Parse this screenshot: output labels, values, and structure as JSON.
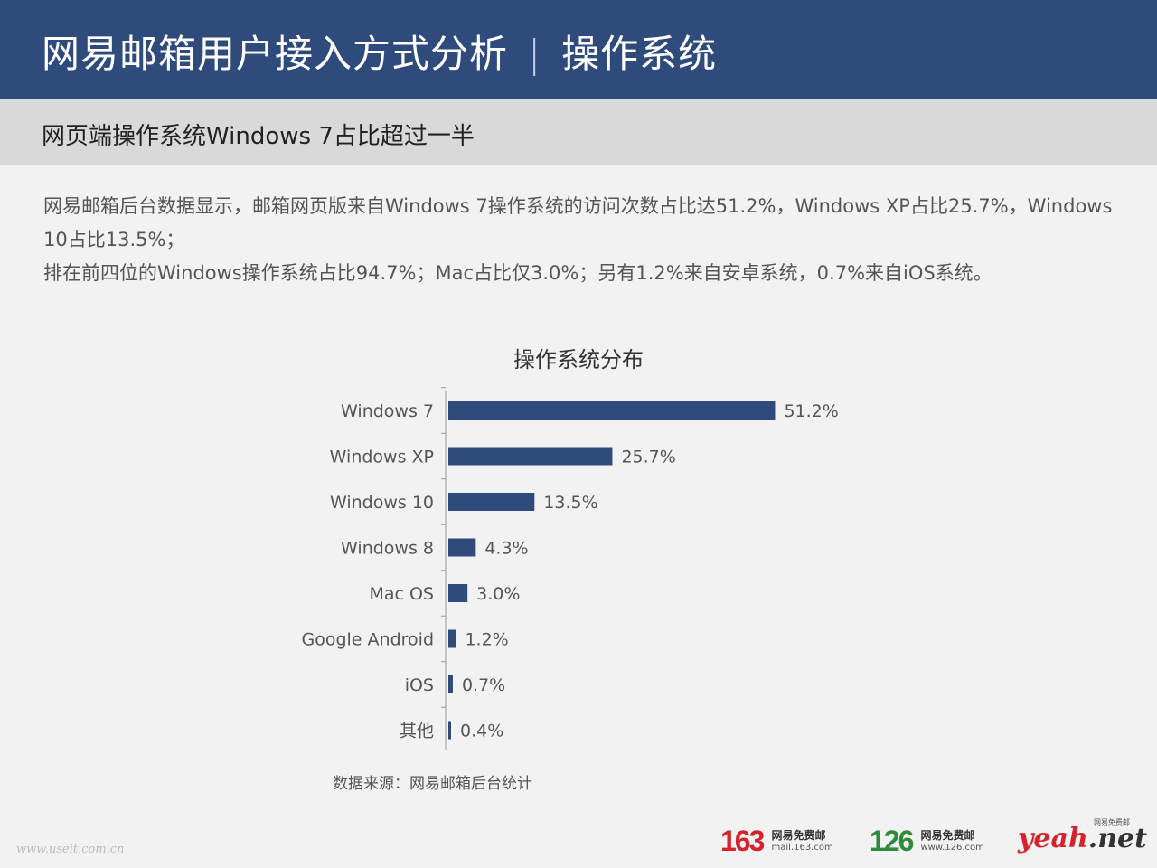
{
  "header": {
    "title": "网易邮箱用户接入方式分析",
    "separator": "|",
    "subtitle": "操作系统"
  },
  "subheader": {
    "title": "网页端操作系统Windows 7占比超过一半"
  },
  "description": {
    "line1": "网易邮箱后台数据显示，邮箱网页版来自Windows 7操作系统的访问次数占比达51.2%，Windows XP占比25.7%，Windows 10占比13.5%；",
    "line2": "排在前四位的Windows操作系统占比94.7%；Mac占比仅3.0%；另有1.2%来自安卓系统，0.7%来自iOS系统。"
  },
  "chart_title": "操作系统分布",
  "chart_data": {
    "type": "bar",
    "orientation": "horizontal",
    "title": "操作系统分布",
    "categories": [
      "Windows 7",
      "Windows XP",
      "Windows 10",
      "Windows 8",
      "Mac OS",
      "Google Android",
      "iOS",
      "其他"
    ],
    "values": [
      51.2,
      25.7,
      13.5,
      4.3,
      3.0,
      1.2,
      0.7,
      0.4
    ],
    "value_labels": [
      "51.2%",
      "25.7%",
      "13.5%",
      "4.3%",
      "3.0%",
      "1.2%",
      "0.7%",
      "0.4%"
    ],
    "bar_color": "#2f4b7c",
    "grid": false,
    "legend": "none"
  },
  "source": "数据来源：网易邮箱后台统计",
  "watermark": "www.useit.com.cn",
  "logos": {
    "logo163": {
      "num": "163",
      "name": "网易免费邮",
      "url": "mail.163.com",
      "color": "#d6222a"
    },
    "logo126": {
      "num": "126",
      "name": "网易免费邮",
      "url": "www.126.com",
      "color": "#2e8b3a"
    },
    "logoyeah": {
      "main": "yeah",
      "suffix": ".net",
      "tag": "网易免费邮"
    }
  }
}
